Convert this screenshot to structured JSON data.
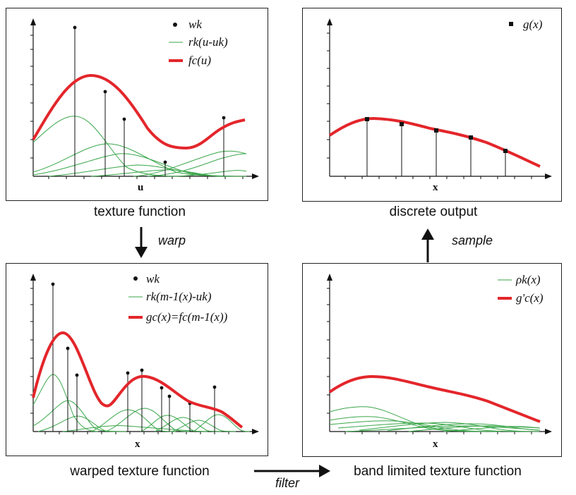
{
  "captions": {
    "texture_function": "texture function",
    "discrete_output": "discrete output",
    "warped_texture_function": "warped texture function",
    "band_limited": "band limited texture function"
  },
  "arrows": {
    "warp": "warp",
    "sample": "sample",
    "filter": "filter"
  },
  "panels": {
    "texture": {
      "xlabel": "u",
      "legend": {
        "weights": "wk",
        "kernels": "rk(u-uk)",
        "function": "fc(u)"
      }
    },
    "discrete": {
      "xlabel": "x",
      "legend": {
        "samples": "g(x)"
      }
    },
    "warped": {
      "xlabel": "x",
      "legend": {
        "weights": "wk",
        "kernels": "rk(m-1(x)-uk)",
        "function": "gc(x)=fc(m-1(x))"
      }
    },
    "bandlimited": {
      "xlabel": "x",
      "legend": {
        "kernels": "ρk(x)",
        "function": "g'c(x)"
      }
    }
  },
  "colors": {
    "function": "#e3262b",
    "kernel": "#3aa64a",
    "ink": "#111111"
  }
}
